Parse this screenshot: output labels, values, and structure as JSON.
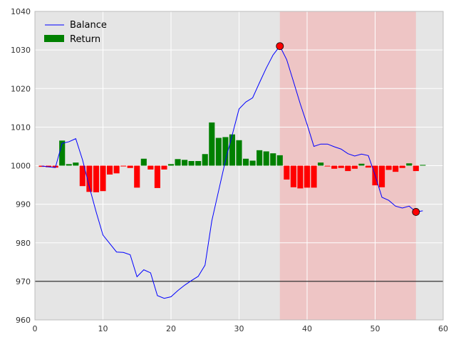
{
  "chart_data": {
    "type": "bar+line",
    "xlim": [
      0,
      60
    ],
    "ylim": [
      960,
      1040
    ],
    "x_ticks": [
      "0",
      "10",
      "20",
      "30",
      "40",
      "50",
      "60"
    ],
    "y_ticks": [
      "960",
      "970",
      "980",
      "990",
      "1000",
      "1010",
      "1020",
      "1030",
      "1040"
    ],
    "grid": true,
    "legend_position": "top-left",
    "legend": [
      {
        "label": "Balance",
        "style": "line",
        "color": "#0000ff"
      },
      {
        "label": "Return",
        "style": "bar",
        "color": "#008000"
      }
    ],
    "reference_line": {
      "y": 970,
      "color": "#000000"
    },
    "highlight_span": {
      "x_start": 36,
      "x_end": 56,
      "color": "#f2b8b8"
    },
    "markers": [
      {
        "x": 36,
        "y": 1031,
        "color": "#ff0000"
      },
      {
        "x": 56,
        "y": 988,
        "color": "#ff0000"
      }
    ],
    "bar_baseline": 1000,
    "bar_colors": {
      "positive": "#008000",
      "negative": "#ff0000"
    },
    "series": [
      {
        "name": "Balance",
        "color": "#0000ff",
        "points": [
          [
            1,
            999.9
          ],
          [
            2,
            999.7
          ],
          [
            3,
            999.5
          ],
          [
            4,
            1005.8
          ],
          [
            5,
            1006.2
          ],
          [
            6,
            1007.0
          ],
          [
            7,
            1001.5
          ],
          [
            8,
            994.5
          ],
          [
            9,
            988.0
          ],
          [
            10,
            982.0
          ],
          [
            11,
            979.8
          ],
          [
            12,
            977.6
          ],
          [
            13,
            977.5
          ],
          [
            14,
            976.9
          ],
          [
            15,
            971.2
          ],
          [
            16,
            973.0
          ],
          [
            17,
            972.2
          ],
          [
            18,
            966.3
          ],
          [
            19,
            965.6
          ],
          [
            20,
            966.0
          ],
          [
            21,
            967.6
          ],
          [
            22,
            969.0
          ],
          [
            23,
            970.2
          ],
          [
            24,
            971.3
          ],
          [
            25,
            974.2
          ],
          [
            26,
            985.7
          ],
          [
            27,
            993.5
          ],
          [
            28,
            1001.3
          ],
          [
            29,
            1008.0
          ],
          [
            30,
            1014.7
          ],
          [
            31,
            1016.5
          ],
          [
            32,
            1017.6
          ],
          [
            33,
            1021.5
          ],
          [
            34,
            1025.3
          ],
          [
            35,
            1028.7
          ],
          [
            36,
            1031.0
          ],
          [
            37,
            1027.5
          ],
          [
            38,
            1021.8
          ],
          [
            39,
            1016.0
          ],
          [
            40,
            1010.7
          ],
          [
            41,
            1005.0
          ],
          [
            42,
            1005.6
          ],
          [
            43,
            1005.6
          ],
          [
            44,
            1004.9
          ],
          [
            45,
            1004.3
          ],
          [
            46,
            1003.1
          ],
          [
            47,
            1002.5
          ],
          [
            48,
            1003.0
          ],
          [
            49,
            1002.6
          ],
          [
            50,
            997.5
          ],
          [
            51,
            991.8
          ],
          [
            52,
            991.0
          ],
          [
            53,
            989.5
          ],
          [
            54,
            989.0
          ],
          [
            55,
            989.5
          ],
          [
            56,
            988.0
          ],
          [
            57,
            988.3
          ]
        ]
      },
      {
        "name": "Return",
        "x": [
          1,
          2,
          3,
          4,
          5,
          6,
          7,
          8,
          9,
          10,
          11,
          12,
          13,
          14,
          15,
          16,
          17,
          18,
          19,
          20,
          21,
          22,
          23,
          24,
          25,
          26,
          27,
          28,
          29,
          30,
          31,
          32,
          33,
          34,
          35,
          36,
          37,
          38,
          39,
          40,
          41,
          42,
          43,
          44,
          45,
          46,
          47,
          48,
          49,
          50,
          51,
          52,
          53,
          54,
          55,
          56,
          57
        ],
        "values": [
          -0.3,
          -0.4,
          -0.5,
          6.5,
          0.4,
          0.8,
          -5.3,
          -6.8,
          -6.9,
          -6.6,
          -2.3,
          -2.0,
          -0.2,
          -0.6,
          -5.7,
          1.8,
          -1.0,
          -5.8,
          -1.0,
          0.4,
          1.7,
          1.5,
          1.2,
          1.2,
          3.0,
          11.2,
          7.2,
          7.4,
          8.1,
          6.6,
          1.8,
          1.3,
          4.0,
          3.7,
          3.2,
          2.7,
          -3.6,
          -5.6,
          -5.9,
          -5.7,
          -5.7,
          0.8,
          -0.2,
          -0.8,
          -0.6,
          -1.4,
          -0.8,
          0.5,
          -0.5,
          -5.1,
          -5.6,
          -1.1,
          -1.6,
          -0.6,
          0.6,
          -1.4,
          0.2
        ]
      }
    ]
  }
}
